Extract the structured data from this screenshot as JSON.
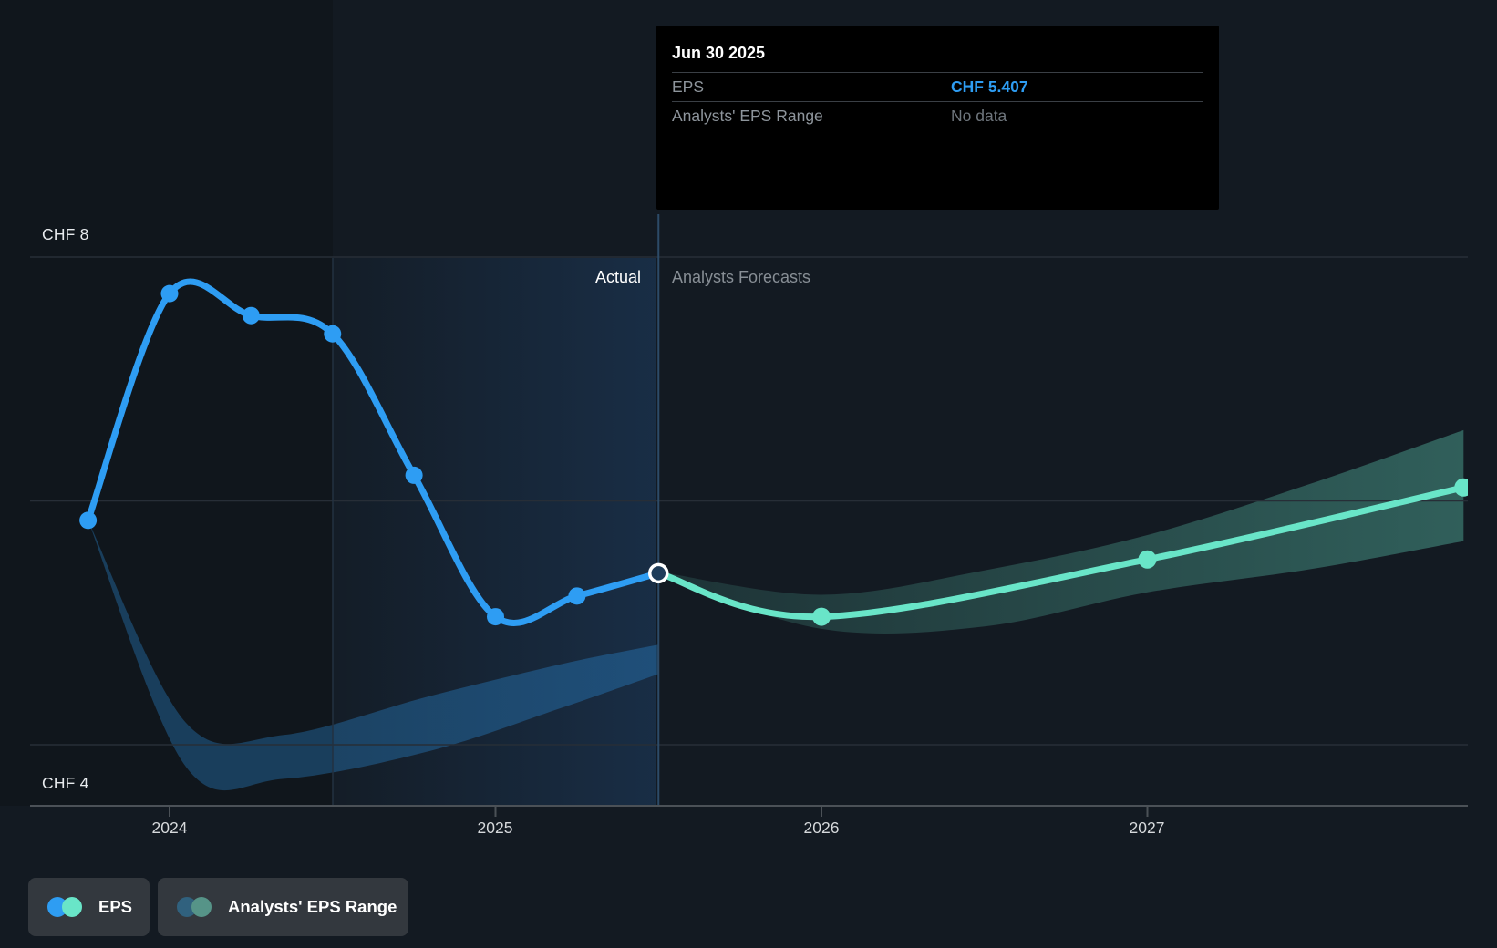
{
  "header_tooltip": {
    "date": "Jun 30 2025",
    "rows": [
      {
        "label": "EPS",
        "value": "CHF 5.407",
        "value_color": "#2E9DF3"
      },
      {
        "label": "Analysts' EPS Range",
        "value": "No data",
        "value_color": "#6F767D"
      }
    ]
  },
  "sections": {
    "actual_label": "Actual",
    "forecast_label": "Analysts Forecasts"
  },
  "y_axis": {
    "top_label": "CHF 8",
    "bottom_label": "CHF 4"
  },
  "x_axis": {
    "tick_labels": [
      "2024",
      "2025",
      "2026",
      "2027"
    ]
  },
  "legend": [
    {
      "label": "EPS",
      "dot_colors": [
        "#2E9DF3",
        "#69E5C8"
      ]
    },
    {
      "label": "Analysts' EPS Range",
      "dot_colors": [
        "#30617E",
        "#569488"
      ]
    }
  ],
  "chart_data": {
    "type": "line",
    "title": "EPS actual vs analysts forecast",
    "unit": "CHF",
    "ylim": [
      3.6,
      8.4
    ],
    "y_gridlines": [
      8,
      6,
      4
    ],
    "y_gridline_labeled": [
      8,
      4
    ],
    "x_ticks": [
      2024,
      2025,
      2026,
      2027
    ],
    "actual_forecast_divider_x": 2025.5,
    "divider_date": "Jun 30 2025",
    "highlight_point": {
      "x": 2025.5,
      "value": 5.407
    },
    "series": [
      {
        "name": "EPS (actual)",
        "color": "#2E9DF3",
        "x": [
          2023.75,
          2024.0,
          2024.25,
          2024.5,
          2024.75,
          2025.0,
          2025.25,
          2025.5
        ],
        "values": [
          5.84,
          7.7,
          7.52,
          7.37,
          6.21,
          5.05,
          5.22,
          5.407
        ]
      },
      {
        "name": "EPS (analysts forecast)",
        "color": "#69E5C8",
        "x": [
          2025.5,
          2026.0,
          2027.0,
          2027.97
        ],
        "values": [
          5.407,
          5.05,
          5.52,
          6.11
        ]
      }
    ],
    "bands": [
      {
        "name": "EPS past range",
        "color": "#2E9DF3",
        "opacity_from": 0.3,
        "opacity_to": 0.3,
        "x": [
          2023.75,
          2024.05,
          2024.35,
          2024.8,
          2025.2,
          2025.5
        ],
        "upper": [
          5.84,
          4.18,
          4.08,
          4.4,
          4.66,
          4.82
        ],
        "lower": [
          5.84,
          3.82,
          3.72,
          3.95,
          4.3,
          4.58
        ]
      },
      {
        "name": "Analysts' EPS Range (forecast)",
        "color": "#69E5C8",
        "opacity_from": 0.12,
        "opacity_to": 0.34,
        "x": [
          2025.5,
          2026.0,
          2026.5,
          2027.0,
          2027.5,
          2027.97
        ],
        "upper": [
          5.42,
          5.23,
          5.43,
          5.72,
          6.14,
          6.58
        ],
        "lower": [
          5.39,
          4.95,
          4.97,
          5.25,
          5.44,
          5.67
        ]
      }
    ],
    "legend_position": "bottom-left",
    "grid": true
  }
}
